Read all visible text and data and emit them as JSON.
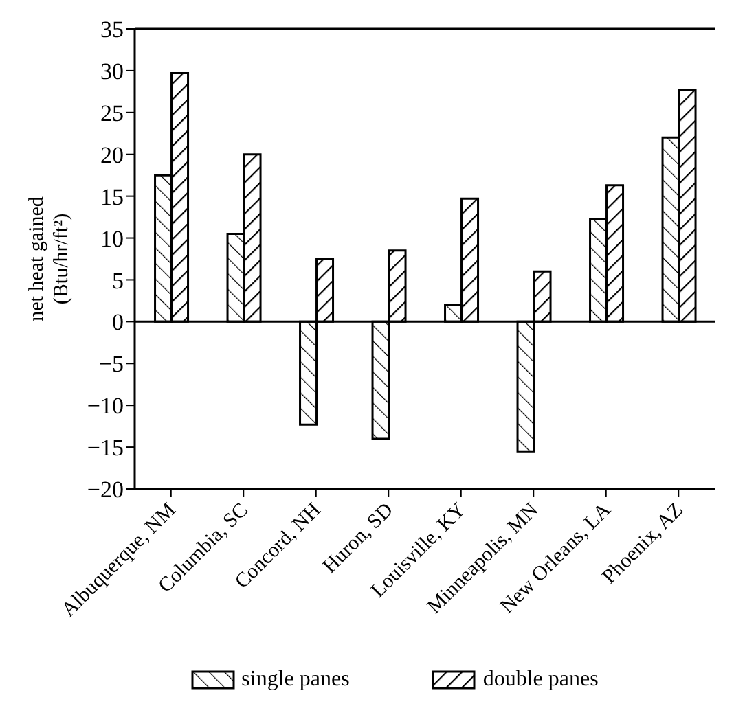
{
  "chart_data": {
    "type": "bar",
    "ylabel": "net heat gained\n(Btu/hr/ft²)",
    "categories": [
      "Albuquerque, NM",
      "Columbia, SC",
      "Concord, NH",
      "Huron, SD",
      "Louisville, KY",
      "Minneapolis, MN",
      "New Orleans, LA",
      "Phoenix, AZ"
    ],
    "series": [
      {
        "name": "single panes",
        "color": "#000000",
        "values": [
          17.5,
          10.5,
          -12.3,
          -14,
          2,
          -15.5,
          12.3,
          22
        ]
      },
      {
        "name": "double panes",
        "color": "#000000",
        "values": [
          29.7,
          20,
          7.5,
          8.5,
          14.7,
          6,
          16.3,
          27.7
        ]
      }
    ],
    "ylim": [
      -20,
      35
    ],
    "yticks": [
      -20,
      -15,
      -10,
      -5,
      0,
      5,
      10,
      15,
      20,
      25,
      30,
      35
    ],
    "ref_lines": [
      {
        "axis": "y",
        "value": 0
      }
    ],
    "grid": false,
    "legend": "bottom"
  }
}
